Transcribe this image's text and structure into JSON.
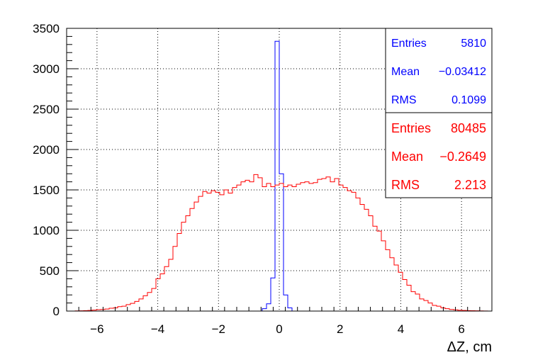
{
  "chart_data": {
    "type": "histogram",
    "xlabel": "ΔZ, cm",
    "ylabel": "",
    "xlim": [
      -7,
      7
    ],
    "ylim": [
      0,
      3500
    ],
    "grid": true,
    "bin_width": 0.14,
    "x_ticks": [
      "−6",
      "−4",
      "−2",
      "0",
      "2",
      "4",
      "6"
    ],
    "x_tick_values": [
      -6,
      -4,
      -2,
      0,
      2,
      4,
      6
    ],
    "y_ticks": [
      "0",
      "500",
      "1000",
      "1500",
      "2000",
      "2500",
      "3000",
      "3500"
    ],
    "y_tick_values": [
      0,
      500,
      1000,
      1500,
      2000,
      2500,
      3000,
      3500
    ],
    "series": [
      {
        "color": "#0000ff",
        "bins": [
          {
            "x": -7.0,
            "y": 0
          },
          {
            "x": -0.56,
            "y": 30
          },
          {
            "x": -0.42,
            "y": 90
          },
          {
            "x": -0.28,
            "y": 410
          },
          {
            "x": -0.14,
            "y": 3340
          },
          {
            "x": 0.0,
            "y": 1700
          },
          {
            "x": 0.14,
            "y": 200
          },
          {
            "x": 0.28,
            "y": 40
          },
          {
            "x": 0.42,
            "y": 0
          }
        ],
        "stats": {
          "entries_label": "Entries",
          "entries_value": "5810",
          "mean_label": "Mean",
          "mean_value": "−0.03412",
          "rms_label": "RMS",
          "rms_value": "0.1099"
        }
      },
      {
        "color": "#ff0000",
        "bins": [
          {
            "x": -7.0,
            "y": 0
          },
          {
            "x": -6.86,
            "y": 0
          },
          {
            "x": -6.72,
            "y": 2
          },
          {
            "x": -6.58,
            "y": 3
          },
          {
            "x": -6.44,
            "y": 5
          },
          {
            "x": -6.3,
            "y": 8
          },
          {
            "x": -6.16,
            "y": 12
          },
          {
            "x": -6.02,
            "y": 18
          },
          {
            "x": -5.88,
            "y": 20
          },
          {
            "x": -5.74,
            "y": 25
          },
          {
            "x": -5.6,
            "y": 35
          },
          {
            "x": -5.46,
            "y": 40
          },
          {
            "x": -5.32,
            "y": 55
          },
          {
            "x": -5.18,
            "y": 60
          },
          {
            "x": -5.04,
            "y": 80
          },
          {
            "x": -4.9,
            "y": 95
          },
          {
            "x": -4.76,
            "y": 120
          },
          {
            "x": -4.62,
            "y": 150
          },
          {
            "x": -4.48,
            "y": 190
          },
          {
            "x": -4.34,
            "y": 230
          },
          {
            "x": -4.2,
            "y": 280
          },
          {
            "x": -4.06,
            "y": 400
          },
          {
            "x": -3.92,
            "y": 460
          },
          {
            "x": -3.78,
            "y": 550
          },
          {
            "x": -3.64,
            "y": 640
          },
          {
            "x": -3.5,
            "y": 800
          },
          {
            "x": -3.36,
            "y": 960
          },
          {
            "x": -3.22,
            "y": 1100
          },
          {
            "x": -3.08,
            "y": 1180
          },
          {
            "x": -2.94,
            "y": 1270
          },
          {
            "x": -2.8,
            "y": 1350
          },
          {
            "x": -2.66,
            "y": 1420
          },
          {
            "x": -2.52,
            "y": 1480
          },
          {
            "x": -2.38,
            "y": 1460
          },
          {
            "x": -2.24,
            "y": 1490
          },
          {
            "x": -2.1,
            "y": 1470
          },
          {
            "x": -1.96,
            "y": 1440
          },
          {
            "x": -1.82,
            "y": 1500
          },
          {
            "x": -1.68,
            "y": 1460
          },
          {
            "x": -1.54,
            "y": 1530
          },
          {
            "x": -1.4,
            "y": 1560
          },
          {
            "x": -1.26,
            "y": 1600
          },
          {
            "x": -1.12,
            "y": 1620
          },
          {
            "x": -0.98,
            "y": 1600
          },
          {
            "x": -0.84,
            "y": 1690
          },
          {
            "x": -0.7,
            "y": 1650
          },
          {
            "x": -0.56,
            "y": 1540
          },
          {
            "x": -0.42,
            "y": 1580
          },
          {
            "x": -0.28,
            "y": 1540
          },
          {
            "x": -0.14,
            "y": 1560
          },
          {
            "x": 0.0,
            "y": 1580
          },
          {
            "x": 0.14,
            "y": 1540
          },
          {
            "x": 0.28,
            "y": 1560
          },
          {
            "x": 0.42,
            "y": 1540
          },
          {
            "x": 0.56,
            "y": 1570
          },
          {
            "x": 0.7,
            "y": 1590
          },
          {
            "x": 0.84,
            "y": 1600
          },
          {
            "x": 0.98,
            "y": 1580
          },
          {
            "x": 1.12,
            "y": 1590
          },
          {
            "x": 1.26,
            "y": 1630
          },
          {
            "x": 1.4,
            "y": 1640
          },
          {
            "x": 1.54,
            "y": 1660
          },
          {
            "x": 1.68,
            "y": 1600
          },
          {
            "x": 1.82,
            "y": 1640
          },
          {
            "x": 1.96,
            "y": 1560
          },
          {
            "x": 2.1,
            "y": 1530
          },
          {
            "x": 2.24,
            "y": 1490
          },
          {
            "x": 2.38,
            "y": 1470
          },
          {
            "x": 2.52,
            "y": 1400
          },
          {
            "x": 2.66,
            "y": 1320
          },
          {
            "x": 2.8,
            "y": 1260
          },
          {
            "x": 2.94,
            "y": 1180
          },
          {
            "x": 3.08,
            "y": 1050
          },
          {
            "x": 3.22,
            "y": 990
          },
          {
            "x": 3.36,
            "y": 870
          },
          {
            "x": 3.5,
            "y": 760
          },
          {
            "x": 3.64,
            "y": 660
          },
          {
            "x": 3.78,
            "y": 570
          },
          {
            "x": 3.92,
            "y": 480
          },
          {
            "x": 4.06,
            "y": 390
          },
          {
            "x": 4.2,
            "y": 320
          },
          {
            "x": 4.34,
            "y": 240
          },
          {
            "x": 4.48,
            "y": 210
          },
          {
            "x": 4.62,
            "y": 150
          },
          {
            "x": 4.76,
            "y": 130
          },
          {
            "x": 4.9,
            "y": 100
          },
          {
            "x": 5.04,
            "y": 70
          },
          {
            "x": 5.18,
            "y": 60
          },
          {
            "x": 5.32,
            "y": 40
          },
          {
            "x": 5.46,
            "y": 30
          },
          {
            "x": 5.6,
            "y": 20
          },
          {
            "x": 5.74,
            "y": 15
          },
          {
            "x": 5.88,
            "y": 10
          },
          {
            "x": 6.02,
            "y": 8
          },
          {
            "x": 6.16,
            "y": 6
          },
          {
            "x": 6.3,
            "y": 4
          },
          {
            "x": 6.44,
            "y": 3
          },
          {
            "x": 6.58,
            "y": 2
          },
          {
            "x": 6.72,
            "y": 1
          },
          {
            "x": 6.86,
            "y": 0
          }
        ],
        "stats": {
          "entries_label": "Entries",
          "entries_value": "80485",
          "mean_label": "Mean",
          "mean_value": "−0.2649",
          "rms_label": "RMS",
          "rms_value": "2.213"
        }
      }
    ]
  }
}
